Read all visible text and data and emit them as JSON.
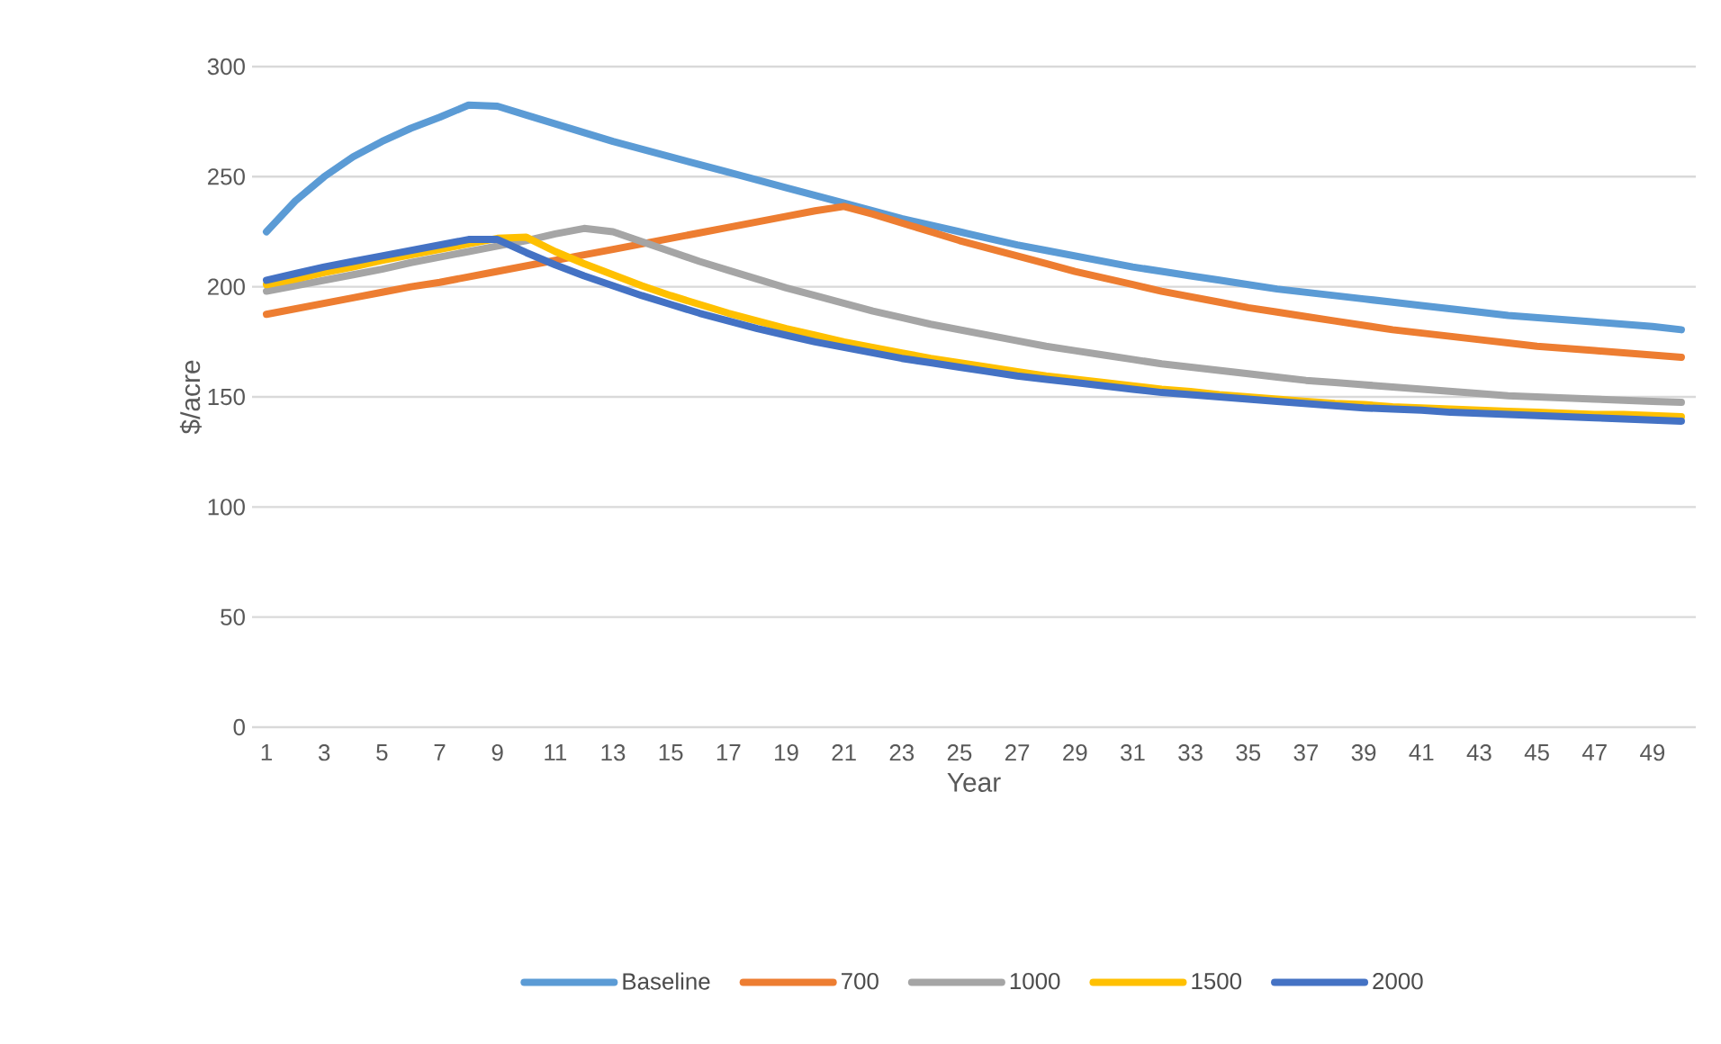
{
  "chart_data": {
    "type": "line",
    "xlabel": "Year",
    "ylabel": "$/acre",
    "categories": [
      "1",
      null,
      "3",
      null,
      "5",
      null,
      "7",
      null,
      "9",
      null,
      "11",
      null,
      "13",
      null,
      "15",
      null,
      "17",
      null,
      "19",
      null,
      "21",
      null,
      "23",
      null,
      "25",
      null,
      "27",
      null,
      "29",
      null,
      "31",
      null,
      "33",
      null,
      "35",
      null,
      "37",
      null,
      "39",
      null,
      "41",
      null,
      "43",
      null,
      "45",
      null,
      "47",
      null,
      "49",
      null
    ],
    "ylim": [
      0,
      300
    ],
    "yticks": [
      0,
      50,
      100,
      150,
      200,
      250,
      300
    ],
    "grid": "y",
    "legend": "bottom",
    "marker": "none",
    "line_style": "solid",
    "series": [
      {
        "name": "Baseline",
        "color": "#5b9bd5",
        "values": [
          225,
          239,
          250,
          259,
          266,
          272,
          277,
          282.5,
          282,
          278,
          274,
          270,
          266,
          262.5,
          259,
          255.5,
          252,
          248.5,
          245,
          241.5,
          238,
          234.5,
          231,
          228,
          225,
          222,
          219,
          216.5,
          214,
          211.5,
          209,
          207,
          205,
          203,
          201,
          199,
          197.5,
          196,
          194.5,
          193,
          191.5,
          190,
          188.5,
          187,
          186,
          185,
          184,
          183,
          182,
          180.5
        ]
      },
      {
        "name": "700",
        "color": "#ed7d31",
        "values": [
          187.5,
          190,
          192.5,
          195,
          197.5,
          200,
          202,
          204.5,
          207,
          209.5,
          212,
          214.5,
          217,
          219.5,
          222,
          224.5,
          227,
          229.5,
          232,
          234.5,
          236.5,
          233,
          229,
          225,
          221,
          217.5,
          214,
          210.5,
          207,
          204,
          201,
          198,
          195.5,
          193,
          190.5,
          188.5,
          186.5,
          184.5,
          182.5,
          180.5,
          179,
          177.5,
          176,
          174.5,
          173,
          172,
          171,
          170,
          169,
          168
        ]
      },
      {
        "name": "1000",
        "color": "#a5a5a5",
        "values": [
          198,
          200.5,
          203,
          205.5,
          208,
          211,
          213.5,
          216,
          218.5,
          221,
          224,
          226.5,
          225,
          220.5,
          216,
          211.5,
          207.5,
          203.5,
          199.5,
          196,
          192.5,
          189,
          186,
          183,
          180.5,
          178,
          175.5,
          173,
          171,
          169,
          167,
          165,
          163.5,
          162,
          160.5,
          159,
          157.5,
          156.5,
          155.5,
          154.5,
          153.5,
          152.5,
          151.5,
          150.5,
          150,
          149.5,
          149,
          148.5,
          148,
          147.5
        ]
      },
      {
        "name": "1500",
        "color": "#ffc000",
        "values": [
          201,
          203.5,
          206.5,
          209,
          212,
          214.5,
          217,
          219.5,
          222,
          222.5,
          216,
          210.5,
          205.5,
          200.5,
          196,
          192,
          188,
          184.5,
          181,
          178,
          175,
          172.5,
          170,
          167.5,
          165.5,
          163.5,
          161.5,
          159.5,
          158,
          156.5,
          155,
          153.5,
          152.5,
          151,
          150,
          149,
          148,
          147,
          146.5,
          145.5,
          145,
          144.5,
          144,
          143.5,
          143,
          142.5,
          142,
          142,
          141.5,
          141
        ]
      },
      {
        "name": "2000",
        "color": "#4472c4",
        "values": [
          203,
          206,
          209,
          211.5,
          214,
          216.5,
          219,
          221.5,
          221.5,
          215.5,
          210,
          205,
          200.5,
          196,
          192,
          188,
          184.5,
          181,
          178,
          175,
          172.5,
          170,
          167.5,
          165.5,
          163.5,
          161.5,
          159.5,
          158,
          156.5,
          155,
          153.5,
          152,
          151,
          150,
          149,
          148,
          147,
          146,
          145,
          144.5,
          144,
          143,
          142.5,
          142,
          141.5,
          141,
          140.5,
          140,
          139.5,
          139
        ]
      }
    ]
  }
}
